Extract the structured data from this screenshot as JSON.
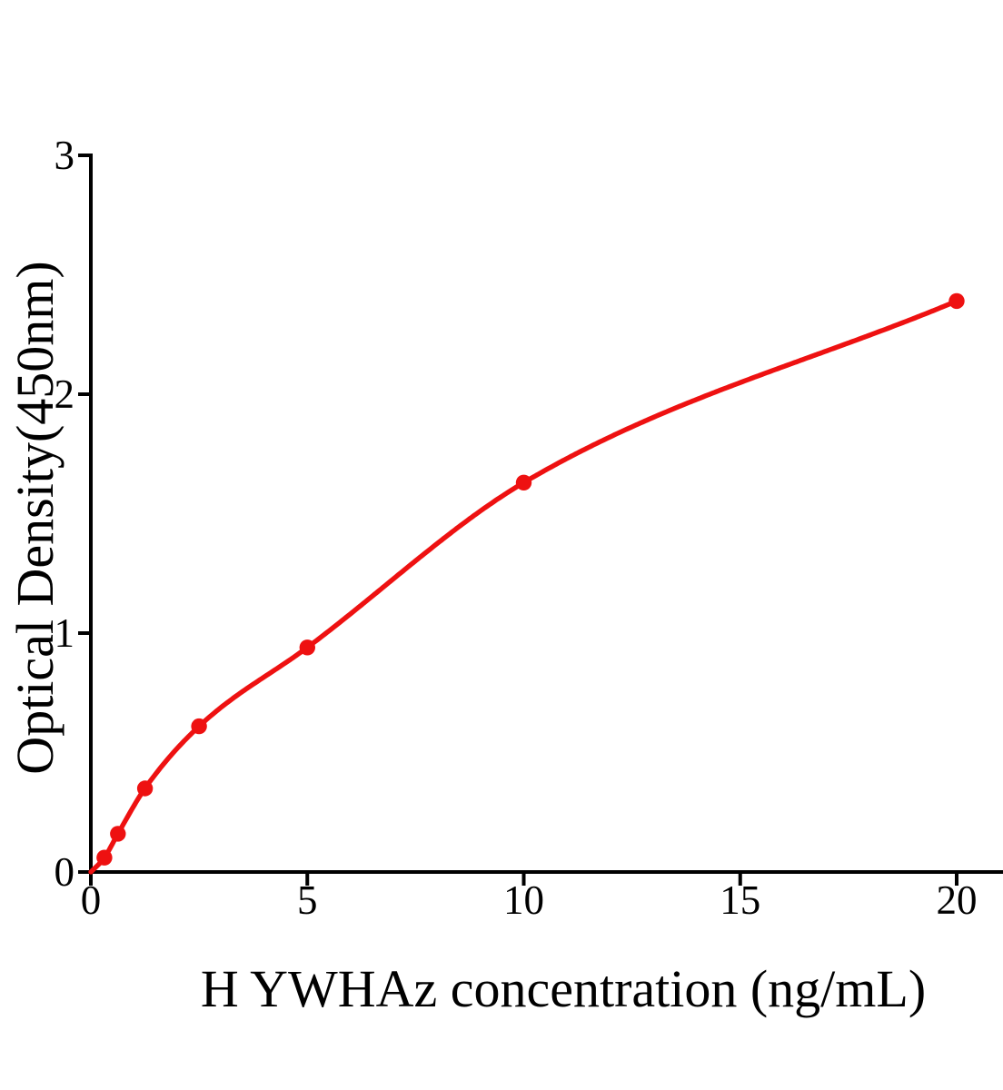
{
  "chart_data": {
    "type": "scatter",
    "xlabel": "H YWHAz concentration (ng/mL)",
    "ylabel": "Optical Density(450nm)",
    "series": [
      {
        "x": [
          0.313,
          0.625,
          1.25,
          2.5,
          5,
          10,
          20
        ],
        "y": [
          0.06,
          0.16,
          0.35,
          0.61,
          0.94,
          1.63,
          2.39
        ],
        "marker": "circle",
        "color": "#EE1111",
        "curve": "smooth-fit",
        "curve_start": [
          0,
          0
        ]
      }
    ],
    "xticks": [
      0,
      5,
      10,
      15,
      20
    ],
    "yticks": [
      0,
      1,
      2,
      3
    ],
    "xlim": [
      0,
      21.1
    ],
    "ylim": [
      0,
      3
    ],
    "grid": false,
    "legend": false,
    "axis_color": "#000000",
    "text_color": "#000000",
    "background": "#ffffff"
  }
}
